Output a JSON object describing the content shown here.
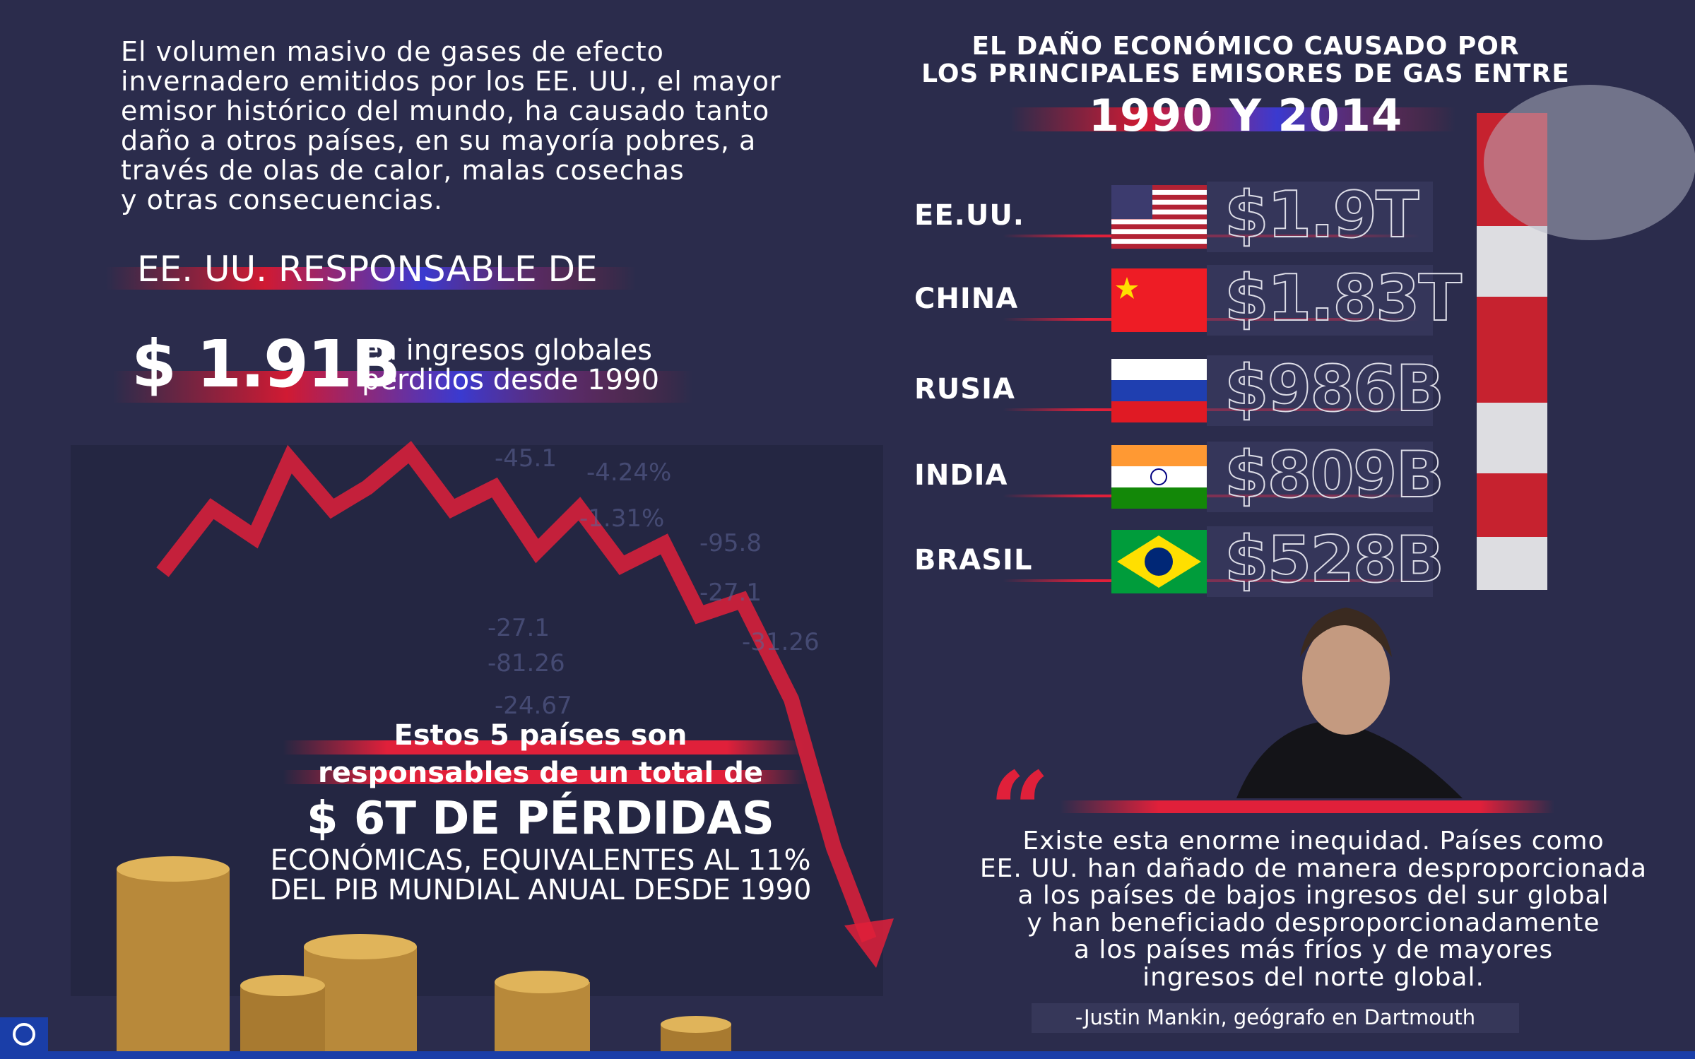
{
  "intro": {
    "lines": [
      "El volumen masivo de gases de efecto",
      "invernadero emitidos por los EE. UU., el mayor",
      "emisor histórico del mundo, ha causado tanto",
      "daño a otros países, en su mayoría pobres, a",
      "través de olas de calor, malas cosechas",
      "y otras consecuencias."
    ]
  },
  "highlight": {
    "heading": "EE. UU. RESPONSABLE DE",
    "amount": "$ 1.91B",
    "caption_lines": [
      "en ingresos globales",
      "perdidos desde 1990"
    ]
  },
  "ranking": {
    "title_lines": [
      "EL DAÑO ECONÓMICO CAUSADO POR",
      "LOS PRINCIPALES EMISORES DE GAS ENTRE"
    ],
    "title_years": "1990 Y 2014",
    "rows": [
      {
        "country": "EE.UU.",
        "value": "$1.9T"
      },
      {
        "country": "CHINA",
        "value": "$1.83T"
      },
      {
        "country": "RUSIA",
        "value": "$986B"
      },
      {
        "country": "INDIA",
        "value": "$809B"
      },
      {
        "country": "BRASIL",
        "value": "$528B"
      }
    ]
  },
  "total": {
    "lines": [
      "Estos 5 países son",
      "responsables de un total de"
    ],
    "amount": "$ 6T DE PÉRDIDAS",
    "detail_lines": [
      "ECONÓMICAS, EQUIVALENTES AL 11%",
      "DEL PIB MUNDIAL ANUAL DESDE 1990"
    ]
  },
  "quote": {
    "lines": [
      "Existe esta enorme inequidad. Países como",
      "EE. UU. han dañado de manera desproporcionada",
      "a los países de bajos ingresos del sur global",
      "y han beneficiado desproporcionadamente",
      "a los países más fríos y de mayores",
      "ingresos del norte global."
    ],
    "attribution": "-Justin Mankin, geógrafo en Dartmouth"
  }
}
